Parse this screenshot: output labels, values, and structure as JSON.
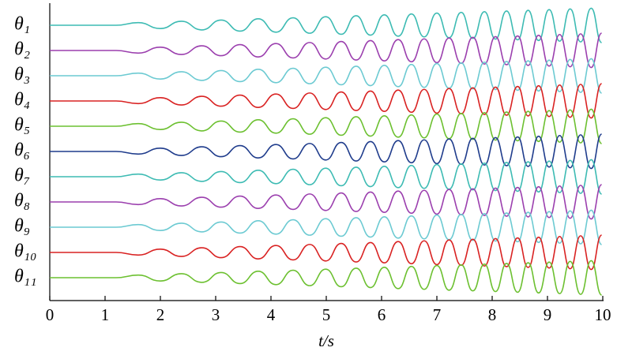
{
  "chart_data": {
    "type": "line",
    "xlabel": "t/s",
    "x": [
      0,
      1.2,
      1.6,
      2,
      2.38,
      2.75,
      3.1,
      3.44,
      3.77,
      4.09,
      4.4,
      4.7,
      4.99,
      5.27,
      5.54,
      5.8,
      6.05,
      6.3,
      6.54,
      6.77,
      7,
      7.22,
      7.44,
      7.65,
      7.86,
      8.06,
      8.26,
      8.46,
      8.65,
      8.84,
      9.03,
      9.22,
      9.41,
      9.6,
      9.79,
      9.98
    ],
    "xlim": [
      0,
      10
    ],
    "xticks": [
      0,
      1,
      2,
      3,
      4,
      5,
      6,
      7,
      8,
      9,
      10
    ],
    "ylim": [
      -1,
      1
    ],
    "series": [
      {
        "name": "θ₁",
        "color": "#3dbbb3",
        "values": [
          0,
          0,
          0.15,
          -0.19,
          0.23,
          -0.27,
          0.3,
          -0.34,
          0.37,
          -0.4,
          0.43,
          -0.46,
          0.49,
          -0.52,
          0.55,
          -0.57,
          0.6,
          -0.63,
          0.65,
          -0.67,
          0.7,
          -0.72,
          0.74,
          -0.76,
          0.78,
          -0.8,
          0.82,
          -0.84,
          0.86,
          -0.88,
          0.9,
          -0.92,
          0.94,
          -0.96,
          0.98,
          -1
        ]
      },
      {
        "name": "θ₂",
        "color": "#9b3fae",
        "values": [
          0,
          0,
          -0.15,
          0.19,
          -0.23,
          0.27,
          -0.3,
          0.34,
          -0.37,
          0.4,
          -0.43,
          0.46,
          -0.49,
          0.52,
          -0.55,
          0.57,
          -0.6,
          0.63,
          -0.65,
          0.67,
          -0.7,
          0.72,
          -0.74,
          0.76,
          -0.78,
          0.8,
          -0.82,
          0.84,
          -0.86,
          0.88,
          -0.9,
          0.92,
          -0.94,
          0.96,
          -0.98,
          1
        ]
      },
      {
        "name": "θ₃",
        "color": "#6ccad2",
        "values": [
          0,
          0,
          0.15,
          -0.19,
          0.23,
          -0.27,
          0.3,
          -0.34,
          0.37,
          -0.4,
          0.43,
          -0.46,
          0.49,
          -0.52,
          0.55,
          -0.57,
          0.6,
          -0.63,
          0.65,
          -0.67,
          0.7,
          -0.72,
          0.74,
          -0.76,
          0.78,
          -0.8,
          0.82,
          -0.84,
          0.86,
          -0.88,
          0.9,
          -0.92,
          0.94,
          -0.96,
          0.98,
          -1
        ]
      },
      {
        "name": "θ₄",
        "color": "#d92222",
        "values": [
          0,
          0,
          -0.15,
          0.19,
          -0.23,
          0.27,
          -0.3,
          0.34,
          -0.37,
          0.4,
          -0.43,
          0.46,
          -0.49,
          0.52,
          -0.55,
          0.57,
          -0.6,
          0.63,
          -0.65,
          0.67,
          -0.7,
          0.72,
          -0.74,
          0.76,
          -0.78,
          0.8,
          -0.82,
          0.84,
          -0.86,
          0.88,
          -0.9,
          0.92,
          -0.94,
          0.96,
          -0.98,
          1
        ]
      },
      {
        "name": "θ₅",
        "color": "#6cc030",
        "values": [
          0,
          0,
          0.15,
          -0.19,
          0.23,
          -0.27,
          0.3,
          -0.34,
          0.37,
          -0.4,
          0.43,
          -0.46,
          0.49,
          -0.52,
          0.55,
          -0.57,
          0.6,
          -0.63,
          0.65,
          -0.67,
          0.7,
          -0.72,
          0.74,
          -0.76,
          0.78,
          -0.8,
          0.82,
          -0.84,
          0.86,
          -0.88,
          0.9,
          -0.92,
          0.94,
          -0.96,
          0.98,
          -1
        ]
      },
      {
        "name": "θ₆",
        "color": "#1f3c8c",
        "values": [
          0,
          0,
          -0.15,
          0.19,
          -0.23,
          0.27,
          -0.3,
          0.34,
          -0.37,
          0.4,
          -0.43,
          0.46,
          -0.49,
          0.52,
          -0.55,
          0.57,
          -0.6,
          0.63,
          -0.65,
          0.67,
          -0.7,
          0.72,
          -0.74,
          0.76,
          -0.78,
          0.8,
          -0.82,
          0.84,
          -0.86,
          0.88,
          -0.9,
          0.92,
          -0.94,
          0.96,
          -0.98,
          1
        ]
      },
      {
        "name": "θ₇",
        "color": "#3dbbb3",
        "values": [
          0,
          0,
          0.15,
          -0.19,
          0.23,
          -0.27,
          0.3,
          -0.34,
          0.37,
          -0.4,
          0.43,
          -0.46,
          0.49,
          -0.52,
          0.55,
          -0.57,
          0.6,
          -0.63,
          0.65,
          -0.67,
          0.7,
          -0.72,
          0.74,
          -0.76,
          0.78,
          -0.8,
          0.82,
          -0.84,
          0.86,
          -0.88,
          0.9,
          -0.92,
          0.94,
          -0.96,
          0.98,
          -1
        ]
      },
      {
        "name": "θ₈",
        "color": "#9b3fae",
        "values": [
          0,
          0,
          -0.15,
          0.19,
          -0.23,
          0.27,
          -0.3,
          0.34,
          -0.37,
          0.4,
          -0.43,
          0.46,
          -0.49,
          0.52,
          -0.55,
          0.57,
          -0.6,
          0.63,
          -0.65,
          0.67,
          -0.7,
          0.72,
          -0.74,
          0.76,
          -0.78,
          0.8,
          -0.82,
          0.84,
          -0.86,
          0.88,
          -0.9,
          0.92,
          -0.94,
          0.96,
          -0.98,
          1
        ]
      },
      {
        "name": "θ₉",
        "color": "#6ccad2",
        "values": [
          0,
          0,
          0.15,
          -0.19,
          0.23,
          -0.27,
          0.3,
          -0.34,
          0.37,
          -0.4,
          0.43,
          -0.46,
          0.49,
          -0.52,
          0.55,
          -0.57,
          0.6,
          -0.63,
          0.65,
          -0.67,
          0.7,
          -0.72,
          0.74,
          -0.76,
          0.78,
          -0.8,
          0.82,
          -0.84,
          0.86,
          -0.88,
          0.9,
          -0.92,
          0.94,
          -0.96,
          0.98,
          -1
        ]
      },
      {
        "name": "θ₁₀",
        "color": "#d92222",
        "values": [
          0,
          0,
          -0.15,
          0.19,
          -0.23,
          0.27,
          -0.3,
          0.34,
          -0.37,
          0.4,
          -0.43,
          0.46,
          -0.49,
          0.52,
          -0.55,
          0.57,
          -0.6,
          0.63,
          -0.65,
          0.67,
          -0.7,
          0.72,
          -0.74,
          0.76,
          -0.78,
          0.8,
          -0.82,
          0.84,
          -0.86,
          0.88,
          -0.9,
          0.92,
          -0.94,
          0.96,
          -0.98,
          1
        ]
      },
      {
        "name": "θ₁₁",
        "color": "#6cc030",
        "values": [
          0,
          0,
          0.15,
          -0.19,
          0.23,
          -0.27,
          0.3,
          -0.34,
          0.37,
          -0.4,
          0.43,
          -0.46,
          0.49,
          -0.52,
          0.55,
          -0.57,
          0.6,
          -0.63,
          0.65,
          -0.67,
          0.7,
          -0.72,
          0.74,
          -0.76,
          0.78,
          -0.8,
          0.82,
          -0.84,
          0.86,
          -0.88,
          0.9,
          -0.92,
          0.94,
          -0.96,
          0.98,
          -1
        ]
      }
    ]
  }
}
